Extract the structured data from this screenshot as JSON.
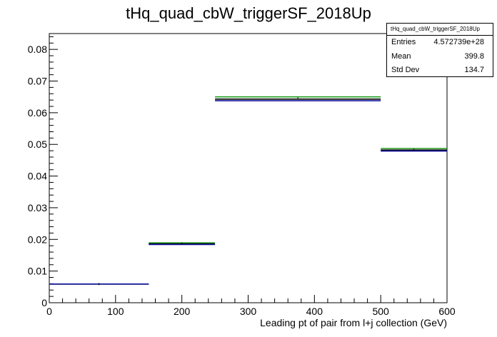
{
  "chart_data": {
    "type": "histogram",
    "title": "tHq_quad_cbW_triggerSF_2018Up",
    "xlabel": "Leading pt of pair from l+j collection (GeV)",
    "ylabel": "",
    "xlim": [
      0,
      600
    ],
    "ylim": [
      0,
      0.085
    ],
    "xticks": [
      "0",
      "100",
      "200",
      "300",
      "400",
      "500",
      "600"
    ],
    "yticks": [
      "0",
      "0.01",
      "0.02",
      "0.03",
      "0.04",
      "0.05",
      "0.06",
      "0.07",
      "0.08"
    ],
    "bins": [
      {
        "low": 0,
        "high": 150,
        "value": 0.0059
      },
      {
        "low": 150,
        "high": 250,
        "value": 0.0187
      },
      {
        "low": 250,
        "high": 500,
        "value": 0.0645
      },
      {
        "low": 500,
        "high": 600,
        "value": 0.0483
      }
    ],
    "series": [
      {
        "color": "#1a9a1a",
        "values": [
          0.0059,
          0.0189,
          0.065,
          0.0487
        ]
      },
      {
        "color": "#000000",
        "values": [
          0.0059,
          0.0186,
          0.0643,
          0.0482
        ]
      },
      {
        "color": "#1414a0",
        "values": [
          0.0059,
          0.0184,
          0.0638,
          0.0479
        ]
      }
    ],
    "grid": false
  },
  "stats_box": {
    "title": "tHq_quad_cbW_triggerSF_2018Up",
    "rows": [
      {
        "label": "Entries",
        "value": "4.572739e+28"
      },
      {
        "label": "Mean",
        "value": "399.8"
      },
      {
        "label": "Std Dev",
        "value": "134.7"
      }
    ]
  }
}
